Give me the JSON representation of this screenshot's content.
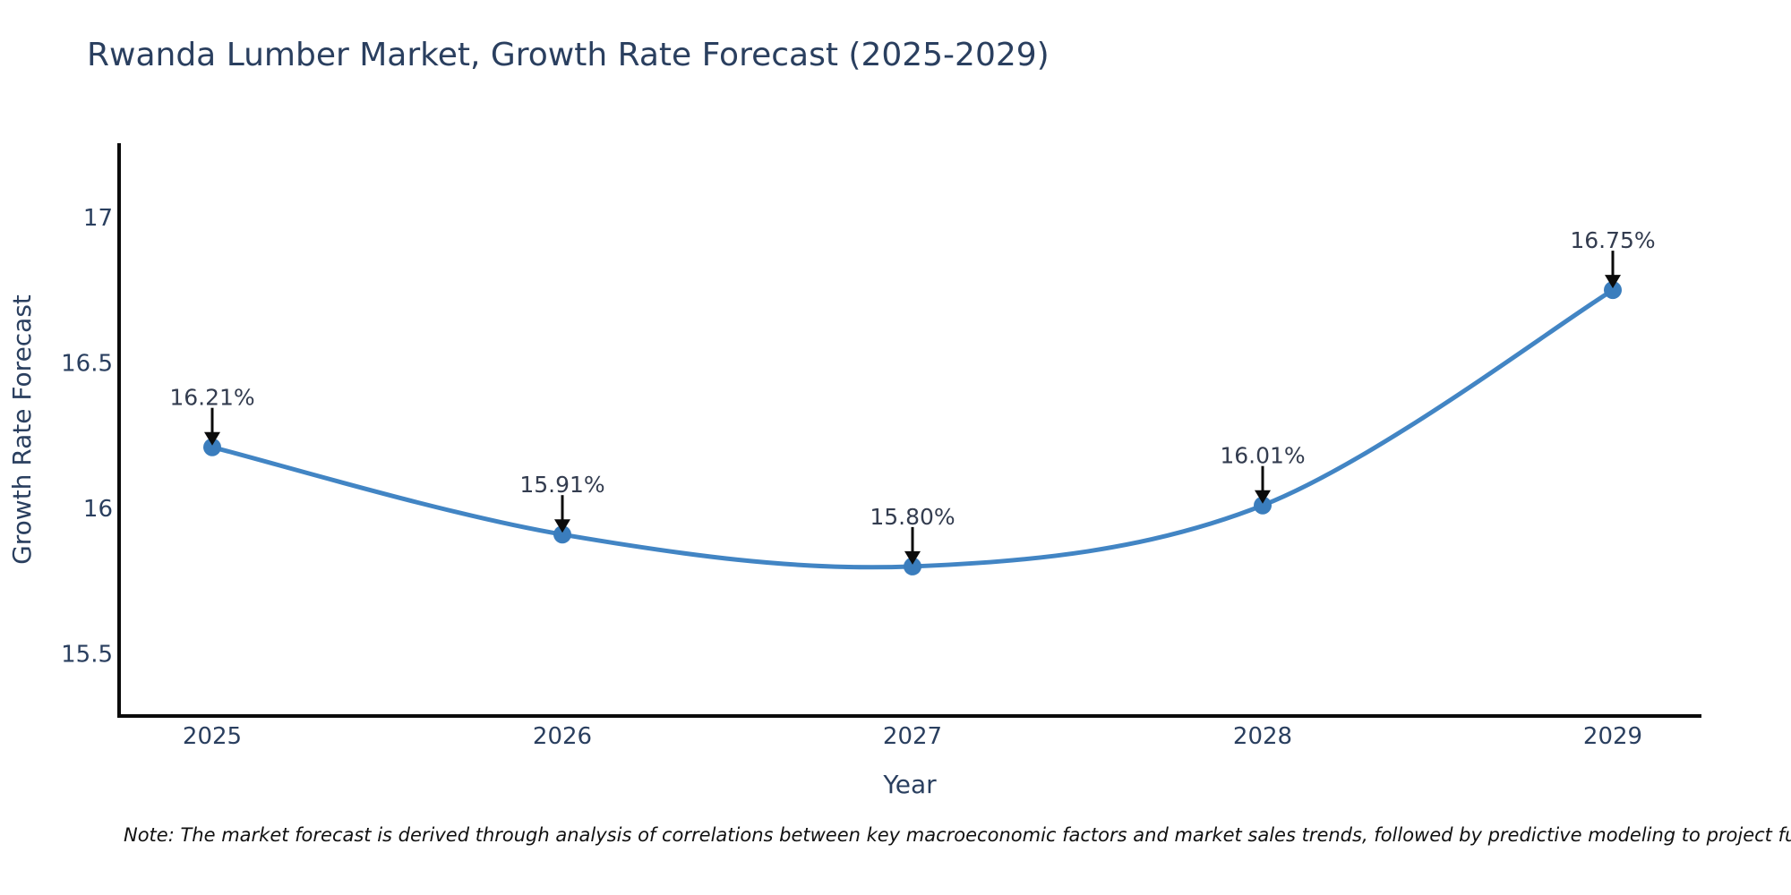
{
  "note": "Note: The market forecast is derived through analysis of correlations between key macroeconomic factors and market sales trends, followed by predictive modeling to project future sales.",
  "chart_data": {
    "type": "line",
    "title": "Rwanda Lumber Market, Growth Rate Forecast (2025-2029)",
    "xlabel": "Year",
    "ylabel": "Growth Rate Forecast",
    "categories": [
      "2025",
      "2026",
      "2027",
      "2028",
      "2029"
    ],
    "series": [
      {
        "name": "Growth Rate Forecast",
        "values": [
          16.21,
          15.91,
          15.8,
          16.01,
          16.75
        ]
      }
    ],
    "point_labels": [
      "16.21%",
      "15.91%",
      "15.80%",
      "16.01%",
      "16.75%"
    ],
    "line_shape": "spline",
    "markers": true,
    "grid": false,
    "legend_position": "none",
    "ylim": [
      15.286,
      17.255
    ],
    "yticks": [
      15.5,
      16,
      16.5,
      17
    ],
    "ytick_labels": [
      "15.5",
      "16",
      "16.5",
      "17"
    ],
    "colors": {
      "line": "#4285c4",
      "marker": "#3a7dbd",
      "axis": "#0b0b0b",
      "tick_text": "#2a3f5f",
      "annotation_text": "#333c4f",
      "arrow": "#0b0b0b",
      "background": "#ffffff"
    }
  }
}
